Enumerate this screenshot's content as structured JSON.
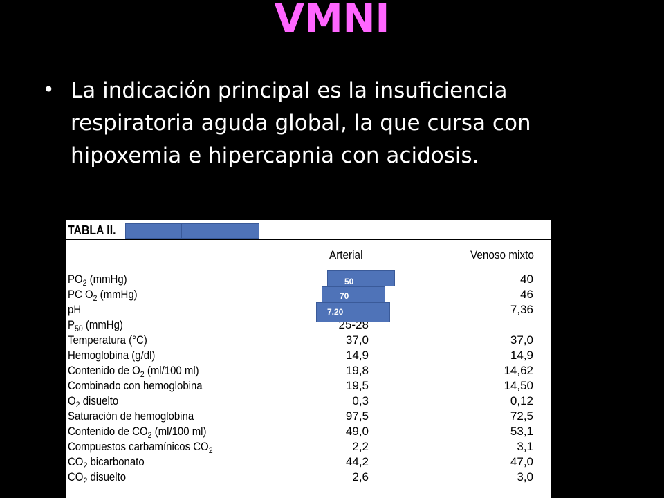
{
  "slide": {
    "title": "VMNI",
    "bullet": "La indicación principal es la insuficiencia respiratoria aguda global, la que cursa con hipoxemia e hipercapnia con acidosis.",
    "colors": {
      "background": "#000000",
      "title": "#ff66ff",
      "text": "#ffffff",
      "overlay_box": "#4f73b8"
    }
  },
  "table": {
    "title": "TABLA II.",
    "columns": [
      "Arterial",
      "Venoso mixto"
    ],
    "overlay_values": [
      "50",
      "70",
      "7.20"
    ],
    "rows": [
      {
        "name": "PO",
        "sub": "2",
        "tail": " (mmHg)",
        "arterial": "",
        "venoso": "40"
      },
      {
        "name": "PC O",
        "sub": "2",
        "tail": " (mmHg)",
        "arterial": "",
        "venoso": "46"
      },
      {
        "name": "pH",
        "sub": "",
        "tail": "",
        "arterial": "",
        "venoso": "7,36"
      },
      {
        "name": "P",
        "sub": "50",
        "tail": " (mmHg)",
        "arterial": "25-28",
        "venoso": ""
      },
      {
        "name": "Temperatura (°C)",
        "sub": "",
        "tail": "",
        "arterial": "37,0",
        "venoso": "37,0"
      },
      {
        "name": "Hemoglobina (g/dl)",
        "sub": "",
        "tail": "",
        "arterial": "14,9",
        "venoso": "14,9"
      },
      {
        "name": "Contenido de O",
        "sub": "2",
        "tail": " (ml/100 ml)",
        "arterial": "19,8",
        "venoso": "14,62"
      },
      {
        "name": "Combinado con hemoglobina",
        "sub": "",
        "tail": "",
        "arterial": "19,5",
        "venoso": "14,50"
      },
      {
        "name": "O",
        "sub": "2",
        "tail": " disuelto",
        "arterial": "0,3",
        "venoso": "0,12"
      },
      {
        "name": "Saturación de hemoglobina",
        "sub": "",
        "tail": "",
        "arterial": "97,5",
        "venoso": "72,5"
      },
      {
        "name": "Contenido de CO",
        "sub": "2",
        "tail": " (ml/100 ml)",
        "arterial": "49,0",
        "venoso": "53,1"
      },
      {
        "name": "Compuestos carbamínicos CO",
        "sub": "2",
        "tail": "",
        "arterial": "2,2",
        "venoso": "3,1"
      },
      {
        "name": "CO",
        "sub": "2",
        "tail": " bicarbonato",
        "arterial": "44,2",
        "venoso": "47,0"
      },
      {
        "name": "CO",
        "sub": "2",
        "tail": " disuelto",
        "arterial": "2,6",
        "venoso": "3,0"
      }
    ]
  }
}
